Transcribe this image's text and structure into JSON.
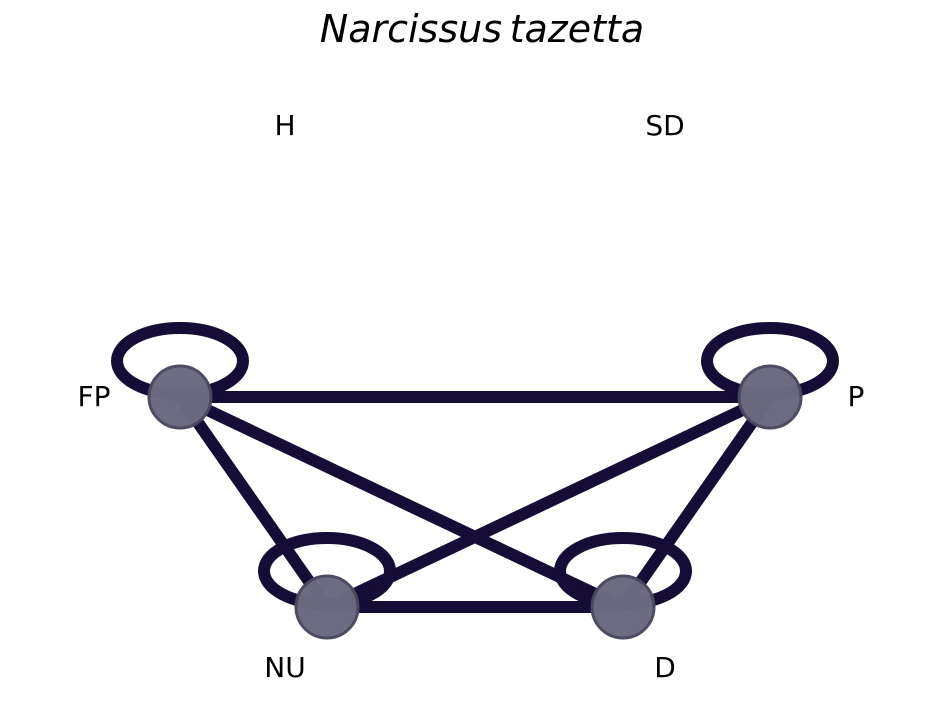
{
  "title": "Narcissus tazetta",
  "nodes": [
    {
      "id": "H",
      "label": "H",
      "drawn": false,
      "self_loop": false
    },
    {
      "id": "SD",
      "label": "SD",
      "drawn": false,
      "self_loop": false
    },
    {
      "id": "FP",
      "label": "FP",
      "drawn": true,
      "self_loop": true
    },
    {
      "id": "P",
      "label": "P",
      "drawn": true,
      "self_loop": true
    },
    {
      "id": "NU",
      "label": "NU",
      "drawn": true,
      "self_loop": true
    },
    {
      "id": "D",
      "label": "D",
      "drawn": true,
      "self_loop": true
    }
  ],
  "edges": [
    {
      "from": "FP",
      "to": "P"
    },
    {
      "from": "FP",
      "to": "NU"
    },
    {
      "from": "FP",
      "to": "D"
    },
    {
      "from": "P",
      "to": "NU"
    },
    {
      "from": "P",
      "to": "D"
    },
    {
      "from": "NU",
      "to": "D"
    }
  ],
  "colors": {
    "edge": "#150d35",
    "node_fill": "#6b6a80",
    "node_stroke": "#4a4960"
  }
}
